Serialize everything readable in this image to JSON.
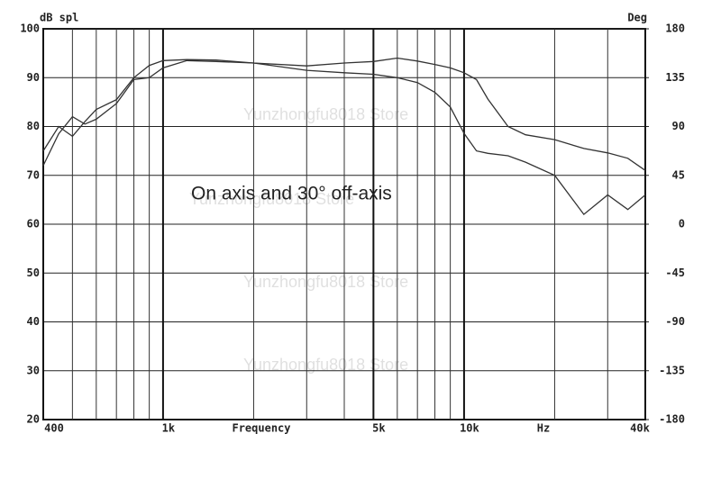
{
  "chart_data": {
    "type": "line",
    "ylabel": "dB spl",
    "y2label": "Deg",
    "xlabel": "Frequency",
    "xunit": "Hz",
    "annotation": "On axis and 30° off-axis",
    "watermark": "Yunzhongfu8018 Store",
    "log_x": true,
    "grid": true,
    "xlim": [
      400,
      40000
    ],
    "xticks": [
      400,
      {
        "value": 1000,
        "label": "1k"
      },
      {
        "value": 5000,
        "label": "5k"
      },
      {
        "value": 10000,
        "label": "10k"
      },
      {
        "value": 40000,
        "label": "40k"
      }
    ],
    "xminor": [
      500,
      600,
      700,
      800,
      900,
      2000,
      3000,
      4000,
      6000,
      7000,
      8000,
      9000,
      20000,
      30000
    ],
    "ylim": [
      20,
      100
    ],
    "yticks": [
      20,
      30,
      40,
      50,
      60,
      70,
      80,
      90,
      100
    ],
    "y2lim": [
      -180,
      180
    ],
    "y2ticks": [
      -180,
      -135,
      -90,
      -45,
      0,
      45,
      90,
      135,
      180
    ],
    "x": [
      400,
      450,
      500,
      550,
      600,
      700,
      800,
      900,
      1000,
      1200,
      1500,
      2000,
      3000,
      4000,
      5000,
      6000,
      7000,
      8000,
      9000,
      10000,
      11000,
      12000,
      14000,
      16000,
      20000,
      25000,
      30000,
      35000,
      40000
    ],
    "series": [
      {
        "color": "#333333",
        "values": [
          72,
          78.5,
          82,
          80.5,
          81.5,
          84.7,
          89.6,
          90,
          92,
          93.5,
          93.3,
          93,
          91.5,
          91,
          90.7,
          90,
          89,
          87,
          84,
          78.6,
          75,
          74.5,
          74,
          72.7,
          70,
          62,
          66,
          63,
          66
        ]
      },
      {
        "color": "#333333",
        "values": [
          75,
          80,
          78,
          81,
          83.5,
          85.5,
          90,
          92.5,
          93.5,
          93.7,
          93.6,
          93,
          92.4,
          93,
          93.3,
          94,
          93.4,
          92.7,
          92,
          91,
          89.6,
          85.6,
          80,
          78.3,
          77.3,
          75.5,
          74.6,
          73.5,
          71
        ]
      }
    ]
  }
}
